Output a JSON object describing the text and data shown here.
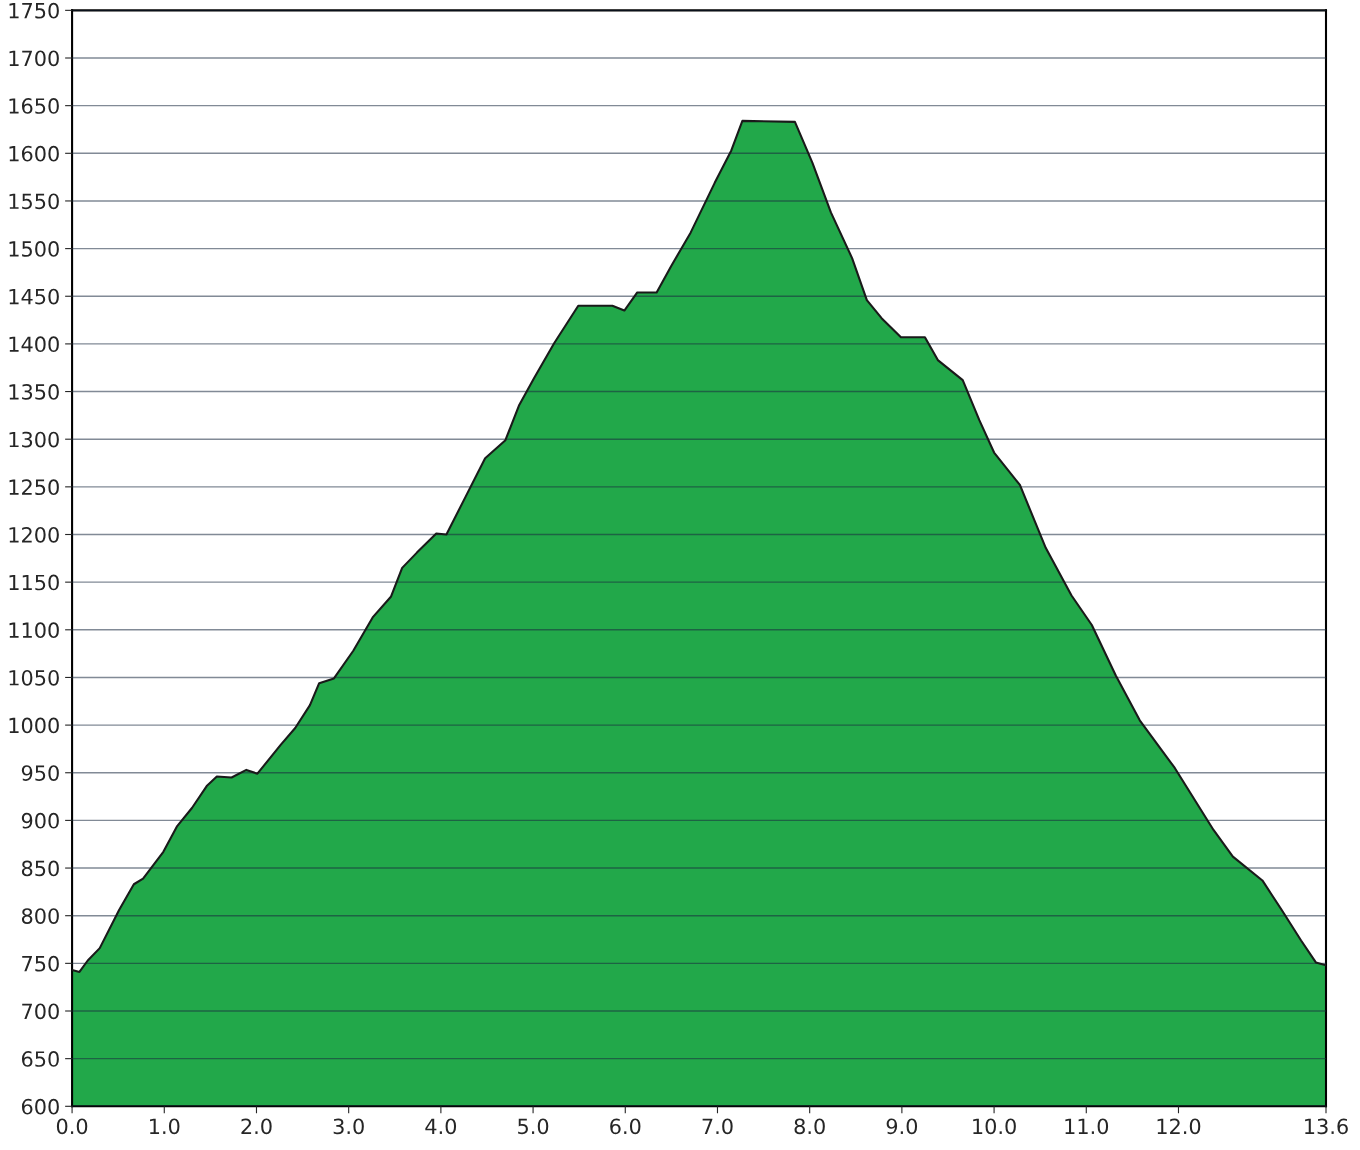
{
  "chart_data": {
    "type": "area",
    "x": [
      0,
      0.08,
      0.17,
      0.3,
      0.51,
      0.67,
      0.77,
      0.99,
      1.14,
      1.3,
      1.46,
      1.57,
      1.73,
      1.89,
      2.01,
      2.26,
      2.42,
      2.58,
      2.68,
      2.84,
      3.05,
      3.26,
      3.46,
      3.58,
      3.74,
      3.95,
      4.06,
      4.27,
      4.48,
      4.7,
      4.85,
      5.01,
      5.23,
      5.49,
      5.86,
      5.99,
      6.13,
      6.34,
      6.5,
      6.71,
      6.97,
      7.15,
      7.27,
      7.84,
      8.03,
      8.23,
      8.46,
      8.62,
      8.78,
      8.99,
      9.25,
      9.39,
      9.66,
      9.84,
      10.0,
      10.28,
      10.56,
      10.84,
      11.06,
      11.32,
      11.58,
      11.96,
      12.38,
      12.59,
      12.91,
      13.12,
      13.33,
      13.49,
      13.6
    ],
    "series": [
      {
        "color": "#22a84a",
        "values": [
          743,
          741,
          753,
          766,
          806,
          833,
          839,
          867,
          894,
          913,
          936,
          946,
          945,
          953,
          949,
          979,
          997,
          1021,
          1044,
          1049,
          1078,
          1113,
          1135,
          1165,
          1181,
          1201,
          1200,
          1240,
          1280,
          1299,
          1336,
          1364,
          1401,
          1440,
          1440,
          1435,
          1454,
          1454,
          1482,
          1517,
          1569,
          1603,
          1634,
          1633,
          1590,
          1538,
          1490,
          1446,
          1427,
          1407,
          1407,
          1383,
          1362,
          1320,
          1286,
          1252,
          1186,
          1136,
          1105,
          1052,
          1005,
          955,
          890,
          862,
          837,
          806,
          774,
          751,
          748
        ]
      }
    ],
    "xlim": [
      0,
      13.6
    ],
    "xticks": [
      {
        "value": 0,
        "label": "0.0"
      },
      {
        "value": 1,
        "label": "1.0"
      },
      {
        "value": 2,
        "label": "2.0"
      },
      {
        "value": 3,
        "label": "3.0"
      },
      {
        "value": 4,
        "label": "4.0"
      },
      {
        "value": 5,
        "label": "5.0"
      },
      {
        "value": 6,
        "label": "6.0"
      },
      {
        "value": 7,
        "label": "7.0"
      },
      {
        "value": 8,
        "label": "8.0"
      },
      {
        "value": 9,
        "label": "9.0"
      },
      {
        "value": 10,
        "label": "10.0"
      },
      {
        "value": 11,
        "label": "11.0"
      },
      {
        "value": 12,
        "label": "12.0"
      },
      13.6
    ],
    "ylim": [
      600,
      1750
    ],
    "yticks": [
      600,
      650,
      700,
      750,
      800,
      850,
      900,
      950,
      1000,
      1050,
      1100,
      1150,
      1200,
      1250,
      1300,
      1350,
      1400,
      1450,
      1500,
      1550,
      1600,
      1650,
      1700,
      1750
    ],
    "grid": "y"
  }
}
